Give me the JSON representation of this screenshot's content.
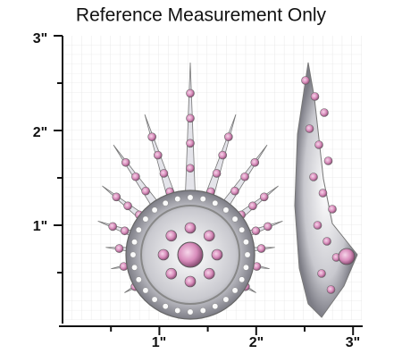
{
  "title": "Reference Measurement Only",
  "vertical_ruler": {
    "labels": [
      "3\"",
      "2\"",
      "1\""
    ]
  },
  "horizontal_ruler": {
    "labels": [
      "1\"",
      "2\"",
      "3\""
    ]
  }
}
